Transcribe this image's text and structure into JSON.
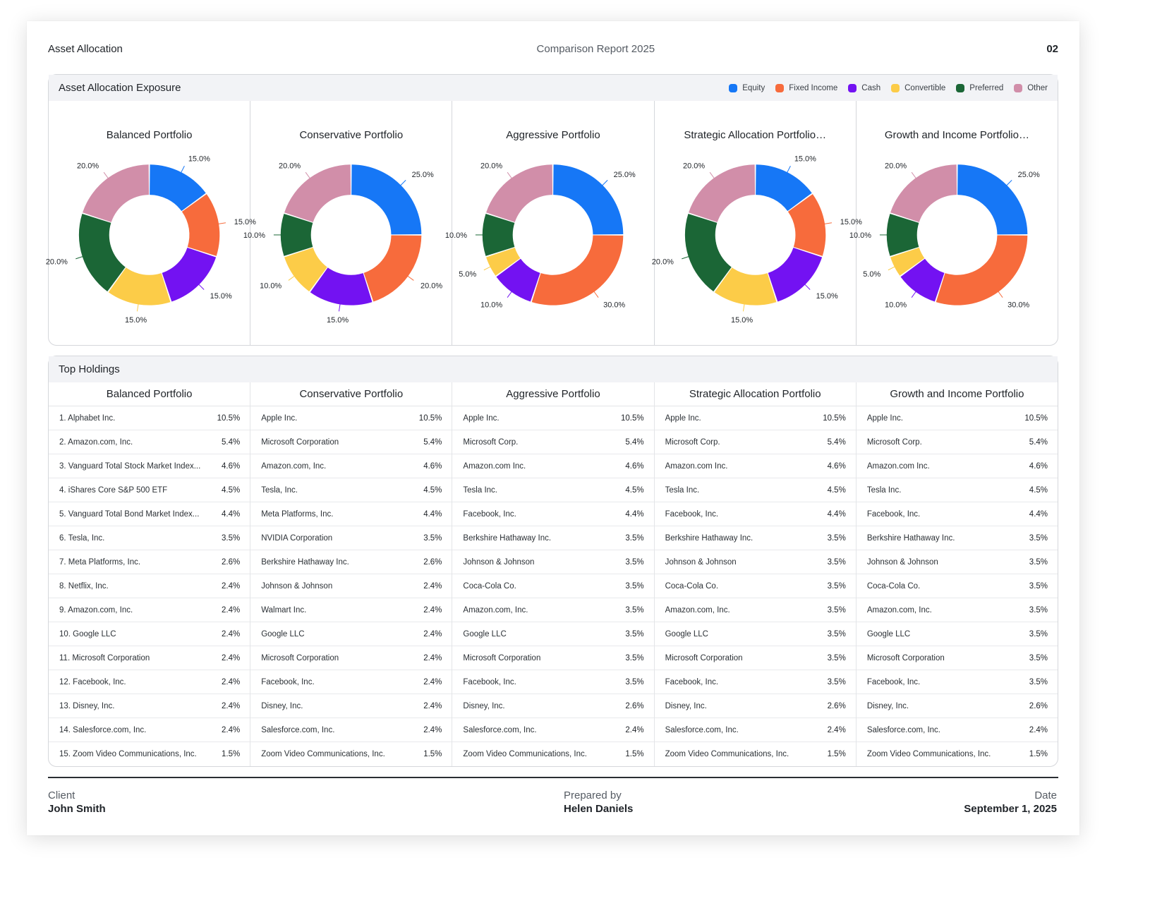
{
  "header": {
    "title": "Asset Allocation",
    "subtitle": "Comparison Report 2025",
    "page_number": "02"
  },
  "allocation": {
    "title": "Asset Allocation Exposure",
    "legend": [
      {
        "label": "Equity",
        "color": "#1677f6"
      },
      {
        "label": "Fixed Income",
        "color": "#f76b3c"
      },
      {
        "label": "Cash",
        "color": "#7312f2"
      },
      {
        "label": "Convertible",
        "color": "#fccc48"
      },
      {
        "label": "Preferred",
        "color": "#1b6636"
      },
      {
        "label": "Other",
        "color": "#d18ea9"
      }
    ]
  },
  "chart_data": [
    {
      "type": "pie",
      "variant": "donut",
      "title": "Balanced Portfolio",
      "categories": [
        "Equity",
        "Fixed Income",
        "Cash",
        "Convertible",
        "Preferred",
        "Other"
      ],
      "values": [
        15.0,
        15.0,
        15.0,
        15.0,
        20.0,
        20.0
      ],
      "labels": [
        "15.0%",
        "15.0%",
        "15.0%",
        "15.0%",
        "20.0%",
        "20.0%"
      ]
    },
    {
      "type": "pie",
      "variant": "donut",
      "title": "Conservative Portfolio",
      "categories": [
        "Equity",
        "Fixed Income",
        "Cash",
        "Convertible",
        "Preferred",
        "Other"
      ],
      "values": [
        25.0,
        20.0,
        15.0,
        10.0,
        10.0,
        20.0
      ],
      "labels": [
        "25.0%",
        "20.0%",
        "15.0%",
        "10.0%",
        "10.0%",
        "20.0%"
      ]
    },
    {
      "type": "pie",
      "variant": "donut",
      "title": "Aggressive Portfolio",
      "categories": [
        "Equity",
        "Fixed Income",
        "Cash",
        "Convertible",
        "Preferred",
        "Other"
      ],
      "values": [
        25.0,
        30.0,
        10.0,
        5.0,
        10.0,
        20.0
      ],
      "labels": [
        "25.0%",
        "30.0%",
        "10.0%",
        "5.0%",
        "10.0%",
        "20.0%"
      ]
    },
    {
      "type": "pie",
      "variant": "donut",
      "title": "Strategic Allocation Portfolio…",
      "categories": [
        "Equity",
        "Fixed Income",
        "Cash",
        "Convertible",
        "Preferred",
        "Other"
      ],
      "values": [
        15.0,
        15.0,
        15.0,
        15.0,
        20.0,
        20.0
      ],
      "labels": [
        "15.0%",
        "15.0%",
        "15.0%",
        "15.0%",
        "20.0%",
        "20.0%"
      ]
    },
    {
      "type": "pie",
      "variant": "donut",
      "title": "Growth and Income Portfolio…",
      "categories": [
        "Equity",
        "Fixed Income",
        "Cash",
        "Convertible",
        "Preferred",
        "Other"
      ],
      "values": [
        25.0,
        30.0,
        10.0,
        5.0,
        10.0,
        20.0
      ],
      "labels": [
        "25.0%",
        "30.0%",
        "10.0%",
        "5.0%",
        "10.0%",
        "20.0%"
      ]
    }
  ],
  "holdings": {
    "title": "Top Holdings",
    "columns": [
      {
        "name": "Balanced Portfolio",
        "rows": [
          {
            "name": "1. Alphabet Inc.",
            "value": "10.5%"
          },
          {
            "name": "2. Amazon.com, Inc.",
            "value": "5.4%"
          },
          {
            "name": "3. Vanguard Total Stock Market Index...",
            "value": "4.6%"
          },
          {
            "name": "4. iShares Core S&P 500 ETF",
            "value": "4.5%"
          },
          {
            "name": "5. Vanguard Total Bond Market Index...",
            "value": "4.4%"
          },
          {
            "name": "6. Tesla, Inc.",
            "value": "3.5%"
          },
          {
            "name": "7. Meta Platforms, Inc.",
            "value": "2.6%"
          },
          {
            "name": "8. Netflix, Inc.",
            "value": "2.4%"
          },
          {
            "name": "9. Amazon.com, Inc.",
            "value": "2.4%"
          },
          {
            "name": "10. Google LLC",
            "value": "2.4%"
          },
          {
            "name": "11. Microsoft Corporation",
            "value": "2.4%"
          },
          {
            "name": "12. Facebook, Inc.",
            "value": "2.4%"
          },
          {
            "name": "13. Disney, Inc.",
            "value": "2.4%"
          },
          {
            "name": "14. Salesforce.com, Inc.",
            "value": "2.4%"
          },
          {
            "name": "15. Zoom Video Communications, Inc.",
            "value": "1.5%"
          }
        ]
      },
      {
        "name": "Conservative Portfolio",
        "rows": [
          {
            "name": "Apple Inc.",
            "value": "10.5%"
          },
          {
            "name": "Microsoft Corporation",
            "value": "5.4%"
          },
          {
            "name": "Amazon.com, Inc.",
            "value": "4.6%"
          },
          {
            "name": "Tesla, Inc.",
            "value": "4.5%"
          },
          {
            "name": "Meta Platforms, Inc.",
            "value": "4.4%"
          },
          {
            "name": "NVIDIA Corporation",
            "value": "3.5%"
          },
          {
            "name": "Berkshire Hathaway Inc.",
            "value": "2.6%"
          },
          {
            "name": "Johnson & Johnson",
            "value": "2.4%"
          },
          {
            "name": "Walmart Inc.",
            "value": "2.4%"
          },
          {
            "name": "Google LLC",
            "value": "2.4%"
          },
          {
            "name": "Microsoft Corporation",
            "value": "2.4%"
          },
          {
            "name": "Facebook, Inc.",
            "value": "2.4%"
          },
          {
            "name": "Disney, Inc.",
            "value": "2.4%"
          },
          {
            "name": "Salesforce.com, Inc.",
            "value": "2.4%"
          },
          {
            "name": "Zoom Video Communications, Inc.",
            "value": "1.5%"
          }
        ]
      },
      {
        "name": "Aggressive Portfolio",
        "rows": [
          {
            "name": "Apple Inc.",
            "value": "10.5%"
          },
          {
            "name": "Microsoft Corp.",
            "value": "5.4%"
          },
          {
            "name": "Amazon.com Inc.",
            "value": "4.6%"
          },
          {
            "name": "Tesla Inc.",
            "value": "4.5%"
          },
          {
            "name": "Facebook, Inc.",
            "value": "4.4%"
          },
          {
            "name": "Berkshire Hathaway Inc.",
            "value": "3.5%"
          },
          {
            "name": "Johnson & Johnson",
            "value": "3.5%"
          },
          {
            "name": "Coca-Cola Co.",
            "value": "3.5%"
          },
          {
            "name": "Amazon.com, Inc.",
            "value": "3.5%"
          },
          {
            "name": "Google LLC",
            "value": "3.5%"
          },
          {
            "name": "Microsoft Corporation",
            "value": "3.5%"
          },
          {
            "name": "Facebook, Inc.",
            "value": "3.5%"
          },
          {
            "name": "Disney, Inc.",
            "value": "2.6%"
          },
          {
            "name": "Salesforce.com, Inc.",
            "value": "2.4%"
          },
          {
            "name": "Zoom Video Communications, Inc.",
            "value": "1.5%"
          }
        ]
      },
      {
        "name": "Strategic Allocation Portfolio",
        "rows": [
          {
            "name": "Apple Inc.",
            "value": "10.5%"
          },
          {
            "name": "Microsoft Corp.",
            "value": "5.4%"
          },
          {
            "name": "Amazon.com Inc.",
            "value": "4.6%"
          },
          {
            "name": "Tesla Inc.",
            "value": "4.5%"
          },
          {
            "name": "Facebook, Inc.",
            "value": "4.4%"
          },
          {
            "name": "Berkshire Hathaway Inc.",
            "value": "3.5%"
          },
          {
            "name": "Johnson & Johnson",
            "value": "3.5%"
          },
          {
            "name": "Coca-Cola Co.",
            "value": "3.5%"
          },
          {
            "name": "Amazon.com, Inc.",
            "value": "3.5%"
          },
          {
            "name": "Google LLC",
            "value": "3.5%"
          },
          {
            "name": "Microsoft Corporation",
            "value": "3.5%"
          },
          {
            "name": "Facebook, Inc.",
            "value": "3.5%"
          },
          {
            "name": "Disney, Inc.",
            "value": "2.6%"
          },
          {
            "name": "Salesforce.com, Inc.",
            "value": "2.4%"
          },
          {
            "name": "Zoom Video Communications, Inc.",
            "value": "1.5%"
          }
        ]
      },
      {
        "name": "Growth and Income Portfolio",
        "rows": [
          {
            "name": "Apple Inc.",
            "value": "10.5%"
          },
          {
            "name": "Microsoft Corp.",
            "value": "5.4%"
          },
          {
            "name": "Amazon.com Inc.",
            "value": "4.6%"
          },
          {
            "name": "Tesla Inc.",
            "value": "4.5%"
          },
          {
            "name": "Facebook, Inc.",
            "value": "4.4%"
          },
          {
            "name": "Berkshire Hathaway Inc.",
            "value": "3.5%"
          },
          {
            "name": "Johnson & Johnson",
            "value": "3.5%"
          },
          {
            "name": "Coca-Cola Co.",
            "value": "3.5%"
          },
          {
            "name": "Amazon.com, Inc.",
            "value": "3.5%"
          },
          {
            "name": "Google LLC",
            "value": "3.5%"
          },
          {
            "name": "Microsoft Corporation",
            "value": "3.5%"
          },
          {
            "name": "Facebook, Inc.",
            "value": "3.5%"
          },
          {
            "name": "Disney, Inc.",
            "value": "2.6%"
          },
          {
            "name": "Salesforce.com, Inc.",
            "value": "2.4%"
          },
          {
            "name": "Zoom Video Communications, Inc.",
            "value": "1.5%"
          }
        ]
      }
    ]
  },
  "footer": {
    "client_label": "Client",
    "client_value": "John Smith",
    "prepared_label": "Prepared by",
    "prepared_value": "Helen Daniels",
    "date_label": "Date",
    "date_value": "September 1, 2025"
  }
}
